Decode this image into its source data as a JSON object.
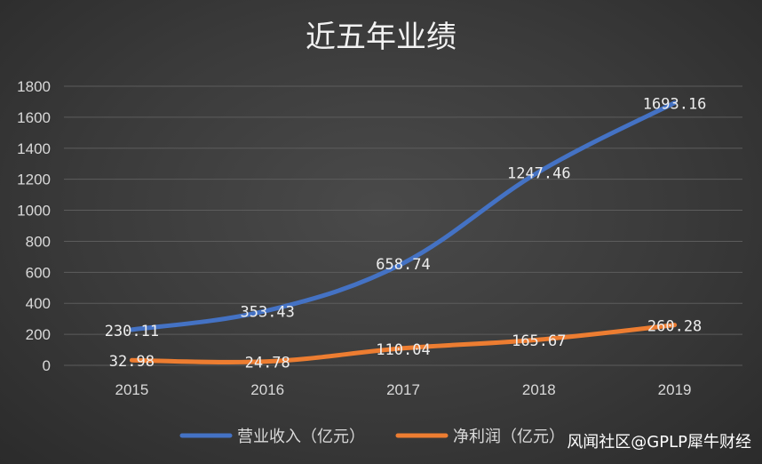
{
  "watermark": "风闻社区@GPLP犀牛财经",
  "chart_data": {
    "type": "line",
    "title": "近五年业绩",
    "xlabel": "",
    "ylabel": "",
    "categories": [
      "2015",
      "2016",
      "2017",
      "2018",
      "2019"
    ],
    "ylim": [
      0,
      1800
    ],
    "yticks": [
      "0",
      "200",
      "400",
      "600",
      "800",
      "1000",
      "1200",
      "1400",
      "1600",
      "1800"
    ],
    "grid": true,
    "legend_position": "bottom",
    "series": [
      {
        "name": "营业收入（亿元）",
        "color": "#4472c4",
        "values": [
          230.11,
          353.43,
          658.74,
          1247.46,
          1693.16
        ],
        "labels": [
          "230.11",
          "353.43",
          "658.74",
          "1247.46",
          "1693.16"
        ]
      },
      {
        "name": "净利润（亿元）",
        "color": "#ed7d31",
        "values": [
          32.98,
          24.78,
          110.04,
          165.67,
          260.28
        ],
        "labels": [
          "32.98",
          "24.78",
          "110.04",
          "165.67",
          "260.28"
        ]
      }
    ]
  }
}
